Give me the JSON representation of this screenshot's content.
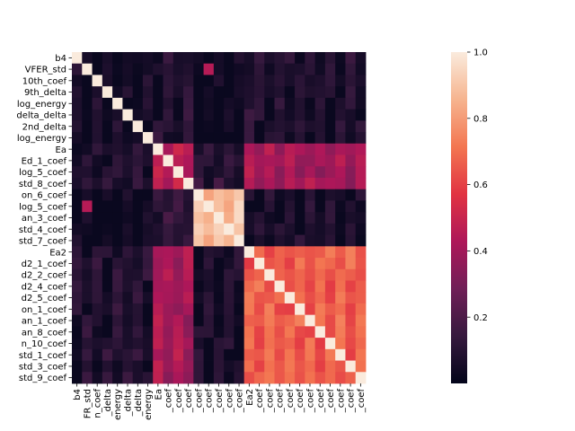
{
  "chart_data": {
    "type": "heatmap",
    "rows": [
      "b4",
      "VFER_std",
      "10th_coef",
      "9th_delta",
      "log_energy",
      "delta_delta",
      "2nd_delta",
      "log_energy",
      "Ea",
      "Ed_1_coef",
      "log_5_coef",
      "std_8_coef",
      "on_6_coef",
      "log_5_coef",
      "an_3_coef",
      "std_4_coef",
      "std_7_coef",
      "Ea2",
      "d2_1_coef",
      "d2_2_coef",
      "d2_4_coef",
      "d2_5_coef",
      "on_1_coef",
      "an_1_coef",
      "an_8_coef",
      "n_10_coef",
      "std_1_coef",
      "std_3_coef",
      "std_9_coef"
    ],
    "columns": [
      "b4",
      "FR_std",
      "n_coef",
      "_delta",
      "energy",
      "_delta",
      "_delta",
      "energy",
      "Ea",
      "_coef",
      "_coef",
      "_coef",
      "_coef",
      "_coef",
      "_coef",
      "_coef",
      "_coef",
      "Ea2",
      "_coef",
      "_coef",
      "_coef",
      "_coef",
      "_coef",
      "_coef",
      "_coef",
      "_coef",
      "_coef",
      "_coef",
      "_coef"
    ],
    "groups": [
      0,
      0,
      0,
      0,
      0,
      0,
      0,
      0,
      1,
      1,
      1,
      1,
      2,
      2,
      2,
      2,
      2,
      3,
      3,
      3,
      3,
      3,
      3,
      3,
      3,
      3,
      3,
      3,
      3
    ],
    "block_values": [
      [
        0.08,
        0.12,
        0.05,
        0.12
      ],
      [
        0.12,
        0.5,
        0.15,
        0.45
      ],
      [
        0.05,
        0.15,
        0.92,
        0.1
      ],
      [
        0.12,
        0.45,
        0.1,
        0.7
      ]
    ],
    "overrides": [
      {
        "row": 1,
        "col": 13,
        "value": 0.45
      },
      {
        "row": 13,
        "col": 1,
        "value": 0.45
      },
      {
        "row": 9,
        "col": 9,
        "value": 1.0
      },
      {
        "row": 19,
        "col": 19,
        "value": 1.0
      }
    ],
    "colorbar": {
      "min": 0.0,
      "max": 1.0,
      "ticks": [
        0.2,
        0.4,
        0.6,
        0.8,
        1.0
      ]
    },
    "colormap": "rocket",
    "colors": {
      "stops": [
        "#03051a",
        "#36193e",
        "#701f57",
        "#ae1759",
        "#e13342",
        "#f37651",
        "#f6b48f",
        "#faebdd"
      ]
    },
    "title": "",
    "xlabel": "",
    "ylabel": ""
  }
}
